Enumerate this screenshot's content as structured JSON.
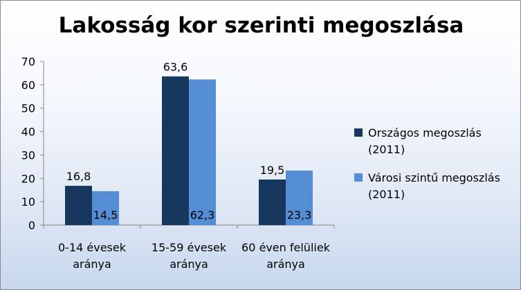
{
  "chart_data": {
    "type": "bar",
    "title": "Lakosság kor szerinti megoszlása",
    "categories": [
      [
        "0-14 évesek",
        "aránya"
      ],
      [
        "15-59 évesek",
        "aránya"
      ],
      [
        "60 éven felüliek",
        "aránya"
      ]
    ],
    "series": [
      {
        "name": [
          "Országos megoszlás",
          "(2011)"
        ],
        "color": "#17375e",
        "values": [
          16.8,
          63.6,
          19.5
        ],
        "labels": [
          "16,8",
          "63,6",
          "19,5"
        ]
      },
      {
        "name": [
          "Városi szintű megoszlás",
          "(2011)"
        ],
        "color": "#558ed5",
        "values": [
          14.5,
          62.3,
          23.3
        ],
        "labels": [
          "14,5",
          "62,3",
          "23,3"
        ]
      }
    ],
    "ylim": [
      0,
      70
    ],
    "yticks": [
      "0",
      "10",
      "20",
      "30",
      "40",
      "50",
      "60",
      "70"
    ],
    "legend": "right",
    "grid": false
  }
}
